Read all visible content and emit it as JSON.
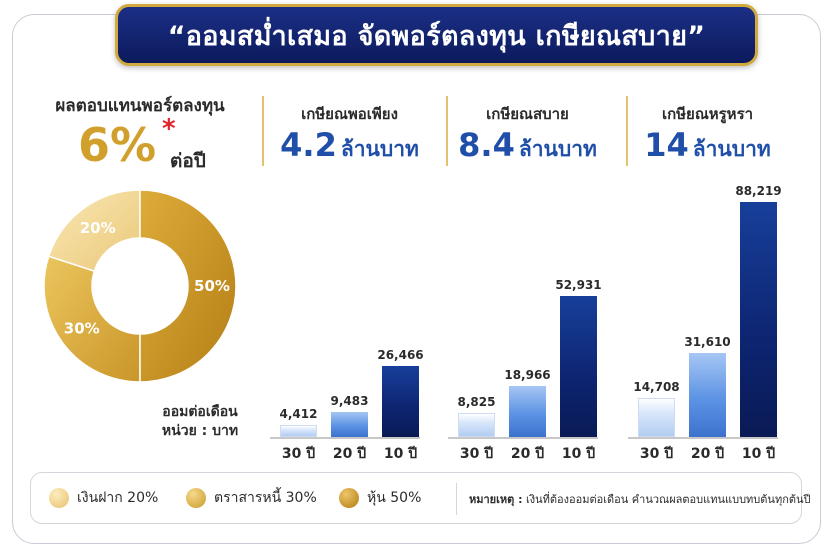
{
  "title": "“ออมสม่ำเสมอ จัดพอร์ตลงทุน เกษียณสบาย”",
  "return_panel": {
    "title": "ผลตอบแทนพอร์ตลงทุน",
    "rate": "6%",
    "footnote_mark": "*",
    "per": "ต่อปี"
  },
  "monthly_label": "ออมต่อเดือน",
  "unit_label": "หน่วย : บาท",
  "colors": {
    "deposit": "#f3d48f",
    "bond": "#ddb03f",
    "stock": "#c8931c",
    "title_bg": "#13267a",
    "goal_text": "#1f4fa8"
  },
  "chart_data": [
    {
      "type": "pie",
      "style": "donut",
      "categories": [
        "เงินฝาก",
        "ตราสารหนี้",
        "หุ้น"
      ],
      "values": [
        20,
        30,
        50
      ],
      "labels": [
        "20%",
        "30%",
        "50%"
      ]
    },
    {
      "type": "bar",
      "goal_label": "เกษียณพอเพียง",
      "goal_amount": "4.2",
      "goal_unit": "ล้านบาท",
      "categories": [
        "30 ปี",
        "20 ปี",
        "10 ปี"
      ],
      "values": [
        4412,
        9483,
        26466
      ],
      "labels": [
        "4,412",
        "9,483",
        "26,466"
      ]
    },
    {
      "type": "bar",
      "goal_label": "เกษียณสบาย",
      "goal_amount": "8.4",
      "goal_unit": "ล้านบาท",
      "categories": [
        "30 ปี",
        "20 ปี",
        "10 ปี"
      ],
      "values": [
        8825,
        18966,
        52931
      ],
      "labels": [
        "8,825",
        "18,966",
        "52,931"
      ]
    },
    {
      "type": "bar",
      "goal_label": "เกษียณหรูหรา",
      "goal_amount": "14",
      "goal_unit": "ล้านบาท",
      "categories": [
        "30 ปี",
        "20 ปี",
        "10 ปี"
      ],
      "values": [
        14708,
        31610,
        88219
      ],
      "labels": [
        "14,708",
        "31,610",
        "88,219"
      ]
    }
  ],
  "legend": {
    "items": [
      {
        "label": "เงินฝาก 20%",
        "color": "#f3d48f"
      },
      {
        "label": "ตราสารหนี้ 30%",
        "color": "#ddb03f"
      },
      {
        "label": "หุ้น 50%",
        "color": "#c8931c"
      }
    ],
    "note_label": "หมายเหตุ :",
    "note_text": "เงินที่ต้องออมต่อเดือน คำนวณผลตอบแทนแบบทบต้นทุกต้นปี"
  }
}
